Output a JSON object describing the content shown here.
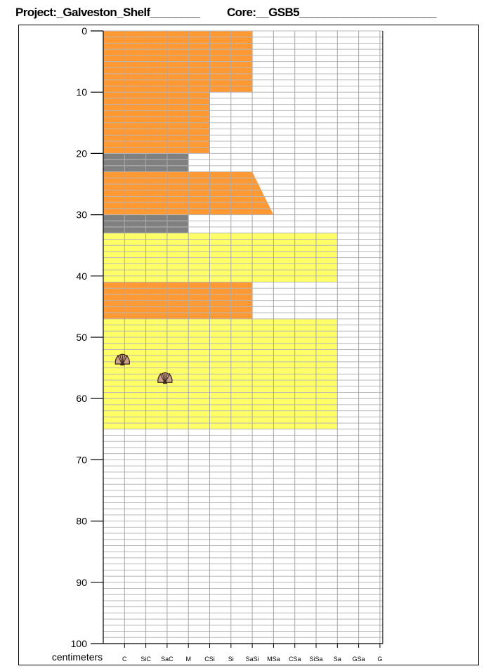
{
  "header": {
    "project": "Project:_Galveston_Shelf________",
    "core": "Core:__GSB5______________________"
  },
  "log": {
    "depth_unit_label": "centimeters",
    "depth_range": [
      0,
      100
    ],
    "depth_ticks": [
      "0",
      "10",
      "20",
      "30",
      "40",
      "50",
      "60",
      "70",
      "80",
      "90",
      "100"
    ],
    "grain_size_classes": [
      "C",
      "SiC",
      "SaC",
      "M",
      "CSi",
      "Si",
      "SaSi",
      "MSa",
      "CSa",
      "SiSa",
      "Sa",
      "GSa",
      "G"
    ],
    "lithology_colors": {
      "orange": "#FF9933",
      "gray": "#808080",
      "yellow": "#FFFF66"
    },
    "intervals": [
      {
        "top": 0,
        "base": 10,
        "grain_top": "SaSi",
        "grain_base": "SaSi",
        "color": "orange"
      },
      {
        "top": 10,
        "base": 20,
        "grain_top": "CSi",
        "grain_base": "CSi",
        "color": "orange"
      },
      {
        "top": 20,
        "base": 23,
        "grain_top": "M",
        "grain_base": "M",
        "color": "gray"
      },
      {
        "top": 23,
        "base": 30,
        "grain_top": "SaSi",
        "grain_base": "MSa",
        "color": "orange"
      },
      {
        "top": 30,
        "base": 33,
        "grain_top": "M",
        "grain_base": "M",
        "color": "gray"
      },
      {
        "top": 33,
        "base": 41,
        "grain_top": "Sa",
        "grain_base": "Sa",
        "color": "yellow"
      },
      {
        "top": 41,
        "base": 47,
        "grain_top": "SaSi",
        "grain_base": "SaSi",
        "color": "orange"
      },
      {
        "top": 47,
        "base": 65,
        "grain_top": "Sa",
        "grain_base": "Sa",
        "color": "yellow"
      }
    ],
    "shells": [
      {
        "depth": 53.8,
        "grain": "C"
      },
      {
        "depth": 56.8,
        "grain": "SaC"
      }
    ]
  }
}
